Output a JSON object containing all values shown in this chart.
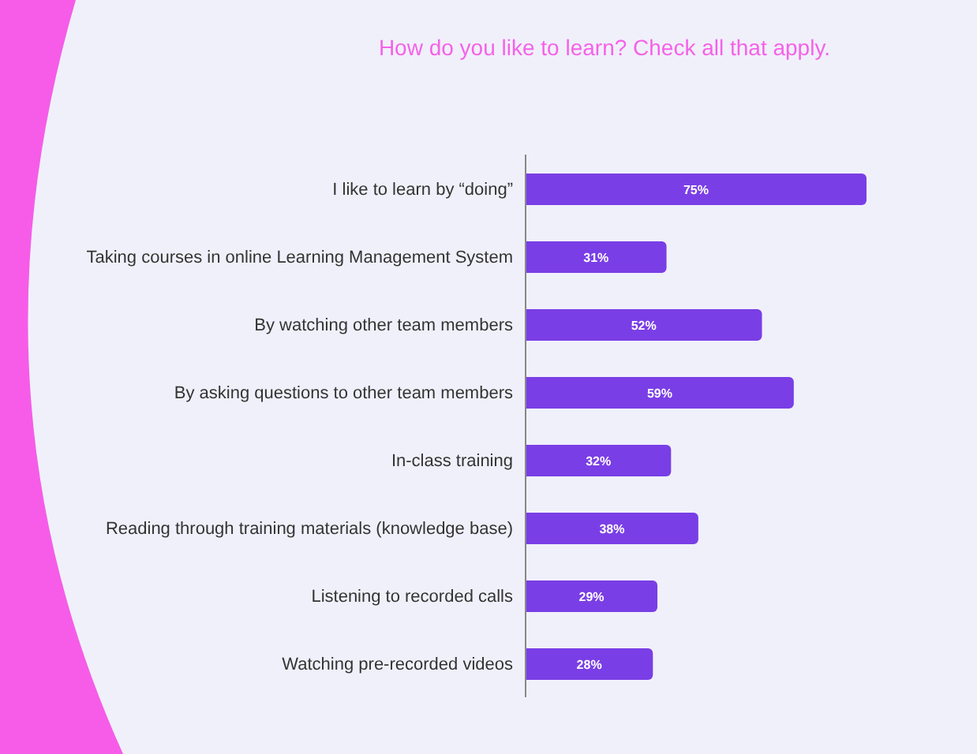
{
  "chart_data": {
    "type": "bar",
    "orientation": "horizontal",
    "title": "How do you like to learn? Check all that apply.",
    "categories": [
      "I like to learn by “doing”",
      "Taking courses in online Learning Management System",
      "By watching other team members",
      "By asking questions to other team members",
      "In-class training",
      "Reading through training materials (knowledge base)",
      "Listening to recorded calls",
      "Watching pre-recorded videos"
    ],
    "series": [
      {
        "color": "#7a3ee6",
        "values": [
          75,
          31,
          52,
          59,
          32,
          38,
          29,
          28
        ],
        "value_labels": [
          "75%",
          "31%",
          "52%",
          "59%",
          "32%",
          "38%",
          "29%",
          "28%"
        ]
      }
    ],
    "tick_labels": "y"
  }
}
